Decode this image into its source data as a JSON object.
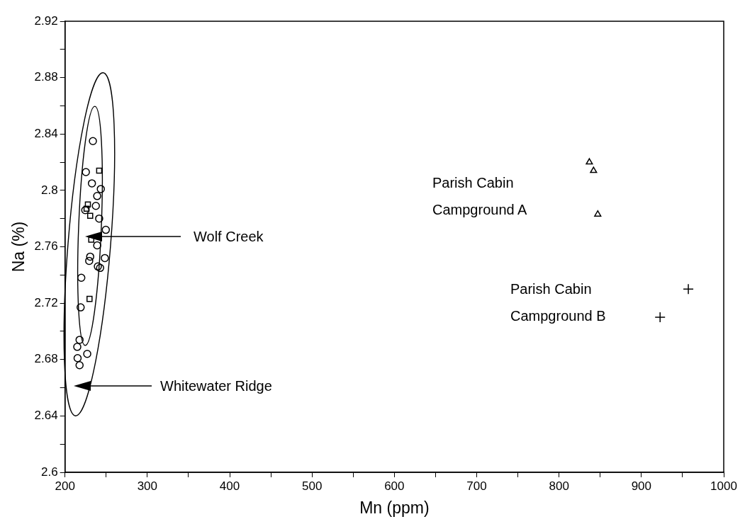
{
  "chart_data": {
    "type": "scatter",
    "xlabel": "Mn (ppm)",
    "ylabel": "Na (%)",
    "xlim": [
      200,
      1000
    ],
    "ylim": [
      2.6,
      2.92
    ],
    "xticks": [
      200,
      {
        "value": 250,
        "label": null
      },
      300,
      {
        "value": 350,
        "label": null
      },
      400,
      {
        "value": 450,
        "label": null
      },
      500,
      {
        "value": 550,
        "label": null
      },
      600,
      {
        "value": 650,
        "label": null
      },
      700,
      {
        "value": 750,
        "label": null
      },
      800,
      {
        "value": 850,
        "label": null
      },
      900,
      {
        "value": 950,
        "label": null
      },
      1000
    ],
    "yticks": [
      2.6,
      {
        "value": 2.62,
        "label": null
      },
      2.64,
      {
        "value": 2.66,
        "label": null
      },
      2.68,
      {
        "value": 2.7,
        "label": null
      },
      2.72,
      {
        "value": 2.74,
        "label": null
      },
      2.76,
      {
        "value": 2.78,
        "label": null
      },
      2.8,
      {
        "value": 2.82,
        "label": null
      },
      2.84,
      {
        "value": 2.86,
        "label": null
      },
      2.88,
      {
        "value": 2.9,
        "label": null
      },
      2.92
    ],
    "grid": false,
    "legend": false,
    "series": [
      {
        "type": "scatter",
        "marker": "circle",
        "color": "#000000",
        "x": [
          233.9,
          225.4,
          232.7,
          243.5,
          239.1,
          237.5,
          224.6,
          241.5,
          249.6,
          239.1,
          230.6,
          229.4,
          248.4,
          239.9,
          242.7,
          219.8,
          219,
          217.7,
          214.9,
          215.3,
          227,
          217.7
        ],
        "values": [
          2.835,
          2.813,
          2.805,
          2.801,
          2.796,
          2.789,
          2.786,
          2.78,
          2.772,
          2.761,
          2.753,
          2.75,
          2.752,
          2.746,
          2.745,
          2.738,
          2.717,
          2.694,
          2.689,
          2.681,
          2.684,
          2.676
        ]
      },
      {
        "type": "scatter",
        "marker": "square",
        "color": "#000000",
        "x": [
          241.5,
          227.8,
          226.2,
          230.6,
          231.9,
          229.8
        ],
        "values": [
          2.814,
          2.79,
          2.787,
          2.782,
          2.765,
          2.723
        ]
      },
      {
        "type": "scatter",
        "marker": "triangle",
        "color": "#000000",
        "x": [
          836.8,
          841.9,
          847
        ],
        "values": [
          2.82,
          2.814,
          2.783
        ]
      },
      {
        "type": "scatter",
        "marker": "cross",
        "color": "#000000",
        "x": [
          957,
          922.7
        ],
        "values": [
          2.73,
          2.71
        ]
      }
    ],
    "annotations": [
      "Wolf Creek",
      "Whitewater Ridge",
      "Parish Cabin\nCampground A",
      "Parish Cabin\nCampground B"
    ]
  }
}
